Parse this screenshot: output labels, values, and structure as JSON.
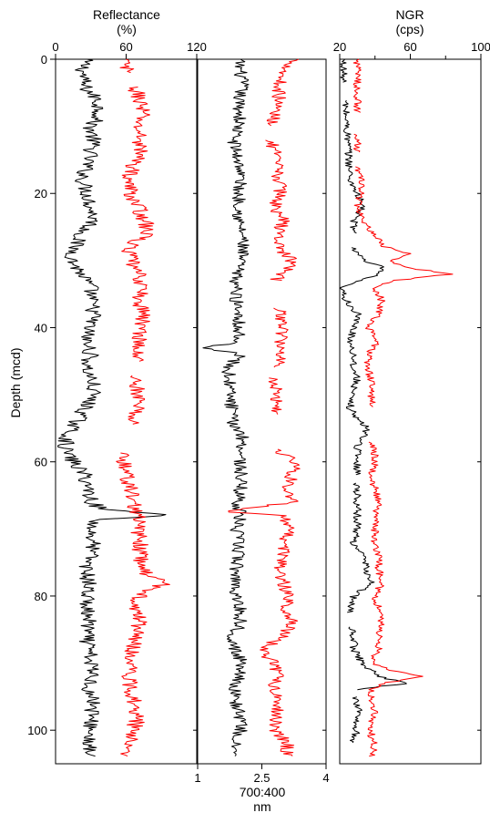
{
  "chart_data": {
    "type": "line",
    "shared_y": {
      "label": "Depth (mcd)",
      "range": [
        0,
        105
      ],
      "ticks": [
        0,
        20,
        40,
        60,
        80,
        100
      ],
      "inverted": true
    },
    "colors": {
      "series_a": "#000000",
      "series_b": "#ff0000"
    },
    "panels": [
      {
        "title": "Reflectance",
        "unit": "(%)",
        "axis_labels_position": "top",
        "xlim": [
          0,
          120
        ],
        "xticks": [
          0,
          60,
          120
        ],
        "series": [
          {
            "color": "#000000",
            "noise": 7,
            "depth": [
              0,
              2,
              4,
              6,
              8,
              10,
              12,
              14,
              16,
              18,
              20,
              22,
              24,
              26,
              28,
              30,
              32,
              34,
              36,
              38,
              40,
              42,
              44,
              46,
              48,
              50,
              52,
              54,
              56,
              58,
              60,
              62,
              64,
              66,
              67,
              68,
              68.5,
              69,
              70,
              72,
              74,
              76,
              78,
              80,
              82,
              84,
              86,
              88,
              90,
              92,
              94,
              96,
              98,
              100,
              102,
              104
            ],
            "value": [
              25,
              23,
              24,
              35,
              38,
              30,
              32,
              30,
              26,
              23,
              27,
              30,
              33,
              22,
              16,
              14,
              22,
              30,
              30,
              33,
              28,
              26,
              30,
              26,
              31,
              32,
              25,
              18,
              10,
              8,
              15,
              25,
              28,
              31,
              38,
              98,
              45,
              32,
              30,
              32,
              30,
              26,
              28,
              27,
              26,
              28,
              26,
              28,
              30,
              32,
              28,
              33,
              30,
              30,
              28,
              28
            ]
          },
          {
            "color": "#ff0000",
            "noise": 7,
            "gaps": [
              [
                2,
                4
              ],
              [
                45,
                47
              ],
              [
                54.5,
                58.5
              ]
            ],
            "depth": [
              0,
              2,
              4,
              6,
              8,
              10,
              12,
              14,
              16,
              18,
              20,
              22,
              24,
              26,
              28,
              30,
              32,
              34,
              36,
              38,
              40,
              42,
              44,
              45,
              47,
              50,
              52,
              54.5,
              58.5,
              60,
              62,
              64,
              66,
              68,
              70,
              72,
              74,
              76,
              77,
              78,
              79,
              80,
              82,
              84,
              86,
              88,
              90,
              92,
              94,
              96,
              98,
              100,
              102,
              104
            ],
            "value": [
              58,
              60,
              66,
              72,
              74,
              70,
              72,
              72,
              66,
              62,
              64,
              70,
              76,
              78,
              62,
              64,
              70,
              74,
              70,
              76,
              72,
              72,
              68,
              70,
              68,
              70,
              69,
              66,
              56,
              58,
              60,
              64,
              66,
              70,
              70,
              72,
              72,
              74,
              80,
              98,
              76,
              72,
              68,
              72,
              68,
              66,
              64,
              62,
              64,
              68,
              70,
              66,
              64,
              62
            ]
          }
        ]
      },
      {
        "title": "",
        "unit": "",
        "axis_labels_position": "bottom",
        "xlabel_lines": [
          "700:400",
          "nm"
        ],
        "xlim": [
          1,
          4
        ],
        "xticks": [
          1,
          2.5,
          4
        ],
        "xtick_labels": [
          "1",
          "2.5",
          "4"
        ],
        "series": [
          {
            "color": "#000000",
            "noise": 0.16,
            "depth": [
              0,
              2,
              4,
              6,
              8,
              10,
              12,
              14,
              16,
              18,
              20,
              22,
              24,
              26,
              28,
              30,
              32,
              34,
              36,
              38,
              40,
              42,
              43,
              44,
              46,
              48,
              50,
              52,
              54,
              56,
              58,
              60,
              62,
              64,
              66,
              68,
              70,
              72,
              74,
              76,
              78,
              80,
              82,
              84,
              86,
              88,
              90,
              92,
              94,
              96,
              98,
              100,
              102,
              104
            ],
            "value": [
              1.95,
              2.0,
              2.05,
              1.95,
              2.0,
              1.95,
              1.85,
              1.9,
              2.0,
              2.0,
              1.95,
              2.0,
              1.95,
              2.05,
              2.05,
              2.0,
              1.9,
              1.9,
              1.9,
              2.0,
              1.95,
              1.95,
              1.25,
              2.0,
              1.7,
              1.75,
              1.75,
              1.8,
              1.8,
              2.05,
              2.05,
              2.0,
              2.0,
              2.0,
              1.95,
              2.0,
              1.9,
              1.95,
              1.95,
              1.9,
              1.9,
              1.9,
              2.0,
              2.0,
              1.85,
              1.85,
              2.05,
              2.0,
              1.85,
              1.9,
              2.0,
              2.0,
              1.85,
              1.85
            ]
          },
          {
            "color": "#ff0000",
            "noise": 0.16,
            "gaps": [
              [
                10,
                12
              ],
              [
                33,
                37
              ],
              [
                46,
                47.5
              ],
              [
                53,
                58
              ]
            ],
            "depth": [
              0,
              2,
              4,
              6,
              8,
              10,
              12,
              14,
              16,
              18,
              20,
              22,
              24,
              26,
              28,
              30,
              32,
              33,
              37,
              40,
              42,
              44,
              46,
              47.5,
              50,
              53,
              58,
              60,
              62,
              64,
              66,
              67.5,
              68,
              70,
              72,
              74,
              76,
              78,
              80,
              82,
              84,
              86,
              88,
              90,
              92,
              94,
              96,
              98,
              100,
              102,
              104
            ],
            "value": [
              3.3,
              3.0,
              2.9,
              2.9,
              2.8,
              2.75,
              2.7,
              2.8,
              2.85,
              2.9,
              2.95,
              2.8,
              3.0,
              2.9,
              2.9,
              3.2,
              3.0,
              2.8,
              2.9,
              3.0,
              2.95,
              2.95,
              2.9,
              2.8,
              2.85,
              2.85,
              2.8,
              3.3,
              3.2,
              3.1,
              3.2,
              1.6,
              3.0,
              3.1,
              3.05,
              3.0,
              2.9,
              3.0,
              3.1,
              3.1,
              3.2,
              3.0,
              2.5,
              2.75,
              2.9,
              2.75,
              2.9,
              2.85,
              2.8,
              3.1,
              3.1
            ]
          }
        ]
      },
      {
        "title": "NGR",
        "unit": "(cps)",
        "axis_labels_position": "top",
        "xlim": [
          20,
          100
        ],
        "xticks": [
          20,
          60,
          100
        ],
        "minor_xticks": [
          40,
          80
        ],
        "series": [
          {
            "color": "#000000",
            "noise": 2.2,
            "gaps": [
              [
                3.5,
                6
              ],
              [
                26,
                28
              ],
              [
                62,
                63
              ],
              [
                82.5,
                84.5
              ],
              [
                94,
                95
              ],
              [
                102,
                104
              ]
            ],
            "depth": [
              0,
              2,
              3.5,
              6,
              10,
              14,
              18,
              20,
              22,
              24,
              26,
              28,
              30,
              31,
              32,
              33,
              34,
              35,
              36,
              38,
              40,
              42,
              44,
              46,
              48,
              50,
              52,
              54,
              55,
              56,
              58,
              60,
              62,
              63,
              66,
              68,
              70,
              72,
              74,
              76,
              78,
              80,
              82.5,
              84.5,
              86,
              88,
              90,
              92,
              93,
              94,
              95,
              97,
              99,
              101,
              102,
              104
            ],
            "value": [
              22,
              22,
              22,
              23,
              24,
              25,
              26,
              30,
              33,
              28,
              28,
              28,
              33,
              44,
              42,
              30,
              20,
              22,
              24,
              30,
              28,
              26,
              28,
              28,
              30,
              26,
              26,
              31,
              36,
              34,
              30,
              30,
              30,
              30,
              30,
              30,
              30,
              28,
              33,
              35,
              38,
              28,
              25,
              27,
              28,
              28,
              33,
              42,
              58,
              28,
              29,
              31,
              29,
              29,
              25,
              24
            ]
          },
          {
            "color": "#ff0000",
            "noise": 2.2,
            "gaps": [
              [
                8,
                11
              ],
              [
                14,
                16
              ],
              [
                52,
                57
              ]
            ],
            "depth": [
              0,
              2,
              4,
              6,
              8,
              11,
              14,
              16,
              18,
              20,
              22,
              24,
              26,
              28,
              29,
              30,
              31,
              32,
              33,
              34,
              36,
              38,
              40,
              42,
              44,
              46,
              48,
              50,
              52,
              57,
              58,
              60,
              62,
              64,
              66,
              68,
              70,
              72,
              74,
              76,
              78,
              80,
              82,
              84,
              86,
              88,
              90,
              91,
              92,
              93,
              94,
              95.5,
              97,
              99,
              101,
              102,
              104
            ],
            "value": [
              30,
              30,
              30,
              30,
              30,
              30,
              30,
              30,
              32,
              32,
              30,
              33,
              38,
              46,
              60,
              48,
              56,
              84,
              50,
              40,
              44,
              42,
              36,
              42,
              36,
              36,
              38,
              38,
              38,
              38,
              40,
              40,
              38,
              40,
              42,
              40,
              40,
              40,
              42,
              42,
              44,
              40,
              42,
              44,
              42,
              42,
              38,
              48,
              68,
              45,
              38,
              38,
              40,
              38,
              38,
              40,
              38
            ]
          }
        ]
      }
    ]
  }
}
